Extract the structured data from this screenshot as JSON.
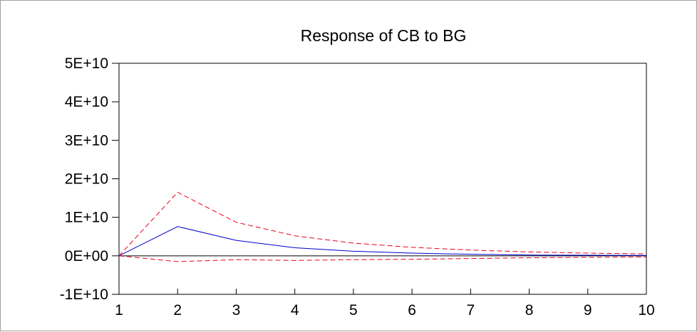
{
  "chart_data": {
    "type": "line",
    "title": "Response of CB to BG",
    "xlabel": "",
    "ylabel": "",
    "x": [
      1,
      2,
      3,
      4,
      5,
      6,
      7,
      8,
      9,
      10
    ],
    "x_tick_labels": [
      "1",
      "2",
      "3",
      "4",
      "5",
      "6",
      "7",
      "8",
      "9",
      "10"
    ],
    "xlim": [
      1,
      10
    ],
    "ylim": [
      -10000000000,
      50000000000
    ],
    "y_ticks": [
      -10000000000,
      0,
      10000000000,
      20000000000,
      30000000000,
      40000000000,
      50000000000
    ],
    "y_tick_labels": [
      "-1E+10",
      "0E+00",
      "1E+10",
      "2E+10",
      "3E+10",
      "4E+10",
      "5E+10"
    ],
    "grid": false,
    "zero_line": true,
    "series": [
      {
        "style": "solid",
        "color": "#0000cc",
        "values": [
          0,
          7600000000,
          4000000000,
          2100000000,
          1200000000,
          700000000,
          400000000,
          200000000,
          150000000,
          100000000
        ]
      },
      {
        "style": "dashed",
        "color": "#e8001c",
        "values": [
          0,
          16500000000,
          8700000000,
          5200000000,
          3300000000,
          2200000000,
          1500000000,
          1000000000,
          700000000,
          500000000
        ]
      },
      {
        "style": "dashed",
        "color": "#e8001c",
        "values": [
          0,
          -1500000000,
          -1000000000,
          -1200000000,
          -1000000000,
          -900000000,
          -700000000,
          -500000000,
          -400000000,
          -300000000
        ]
      }
    ],
    "colors": {
      "zero_line": "#000000",
      "axes": "#000000"
    }
  }
}
